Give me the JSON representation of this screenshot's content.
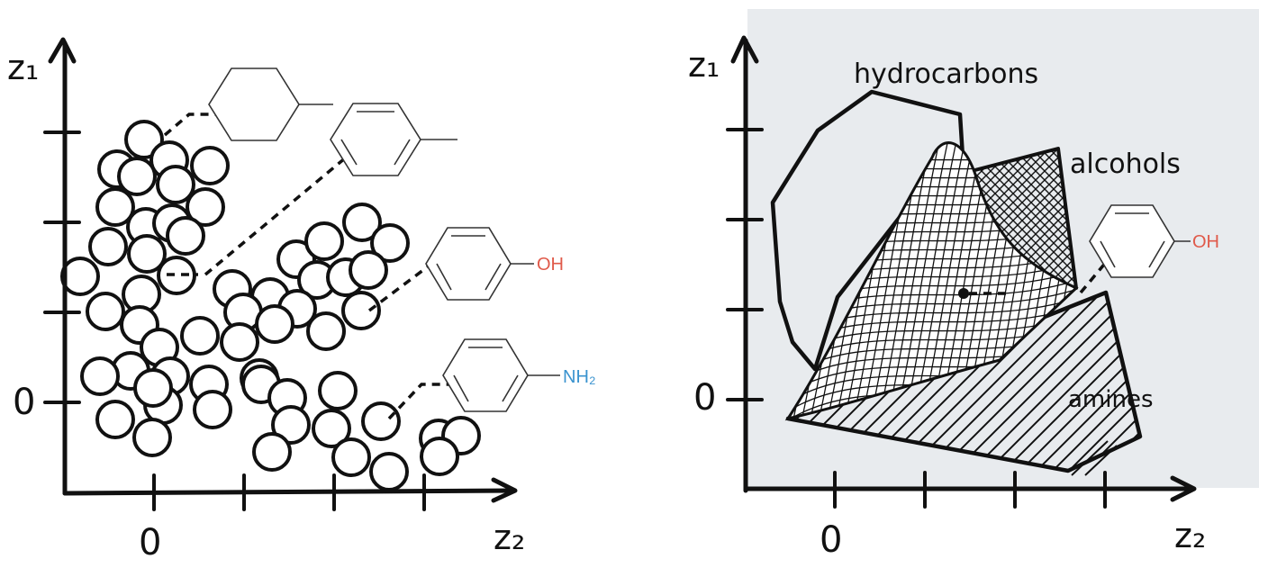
{
  "left_panel": {
    "y_axis_label": "z₁",
    "x_axis_label": "z₂",
    "y_origin_label": "0",
    "x_origin_label": "0",
    "molecules": [
      {
        "name": "methylcyclohexane",
        "substituent": "",
        "substituent_color": "#333333"
      },
      {
        "name": "toluene",
        "substituent": "",
        "substituent_color": "#333333"
      },
      {
        "name": "phenol",
        "substituent": "OH",
        "substituent_color": "#e05a4a"
      },
      {
        "name": "aniline",
        "substituent": "NH₂",
        "substituent_color": "#3a93cf"
      }
    ],
    "point_patterns": [
      "empty",
      "grid",
      "striped"
    ]
  },
  "right_panel": {
    "y_axis_label": "z₁",
    "x_axis_label": "z₂",
    "y_origin_label": "0",
    "x_origin_label": "0",
    "background_color": "#e8ebee",
    "regions": {
      "hydrocarbons": "hydrocarbons",
      "alcohols": "alcohols",
      "amines": "amines"
    },
    "molecule": {
      "substituent": "OH",
      "substituent_color": "#e05a4a"
    }
  }
}
